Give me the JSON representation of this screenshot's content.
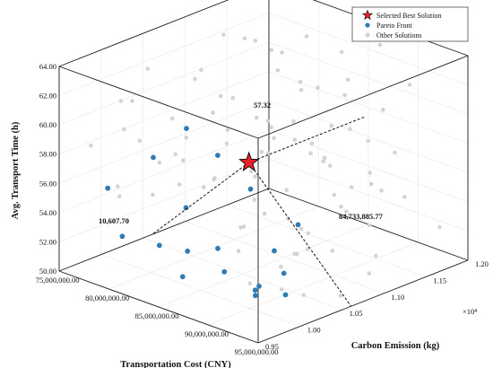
{
  "chart_data": {
    "type": "scatter3d",
    "axes": {
      "x": {
        "label": "Transportation Cost (CNY)",
        "ticks": [
          "75,000,000.00",
          "80,000,000.00",
          "85,000,000.00",
          "90,000,000.00",
          "95,000,000.00"
        ],
        "range": [
          75000000,
          95000000
        ]
      },
      "y": {
        "label": "Carbon Emission (kg)",
        "ticks": [
          "0.95",
          "1.00",
          "1.05",
          "1.10",
          "1.15",
          "1.20"
        ],
        "range": [
          0.95,
          1.2
        ],
        "multiplier": "×10⁴"
      },
      "z": {
        "label": "Avg. Transport Time (h)",
        "ticks": [
          "50.00",
          "52.00",
          "54.00",
          "56.00",
          "58.00",
          "60.00",
          "62.00",
          "64.00"
        ],
        "range": [
          50,
          64
        ]
      }
    },
    "legend": {
      "placement": "top-right",
      "entries": [
        "Selected Best Solution",
        "Pareto Front",
        "Other Solutions"
      ]
    },
    "colors": {
      "best": "#e8202a",
      "pareto": "#2f7bb5",
      "other": "#d3d3d3"
    },
    "annotations": {
      "cost": "84,733,885.77",
      "emission": "10,607.70",
      "time": "57.32"
    },
    "best": {
      "x": 84733885.77,
      "y": 1.06077,
      "z": 57.32
    },
    "pareto": [
      {
        "x": 80500000,
        "y": 0.96,
        "z": 53.5
      },
      {
        "x": 78200000,
        "y": 0.97,
        "z": 56.0
      },
      {
        "x": 81700000,
        "y": 0.99,
        "z": 52.5
      },
      {
        "x": 79400000,
        "y": 1.01,
        "z": 57.5
      },
      {
        "x": 81000000,
        "y": 1.03,
        "z": 54.0
      },
      {
        "x": 82000000,
        "y": 1.02,
        "z": 51.5
      },
      {
        "x": 83200000,
        "y": 1.0,
        "z": 50.5
      },
      {
        "x": 80200000,
        "y": 1.04,
        "z": 59.0
      },
      {
        "x": 82500000,
        "y": 1.05,
        "z": 57.5
      },
      {
        "x": 84200000,
        "y": 1.03,
        "z": 52.0
      },
      {
        "x": 85700000,
        "y": 1.02,
        "z": 51.0
      },
      {
        "x": 83000000,
        "y": 1.08,
        "z": 56.5
      },
      {
        "x": 85800000,
        "y": 1.05,
        "z": 56.0
      },
      {
        "x": 87500000,
        "y": 1.04,
        "z": 50.0
      },
      {
        "x": 86500000,
        "y": 1.07,
        "z": 51.5
      },
      {
        "x": 88800000,
        "y": 1.02,
        "z": 50.5
      },
      {
        "x": 87200000,
        "y": 1.09,
        "z": 53.0
      },
      {
        "x": 90500000,
        "y": 1.0,
        "z": 51.0
      },
      {
        "x": 90000000,
        "y": 1.04,
        "z": 51.5
      },
      {
        "x": 91000000,
        "y": 1.03,
        "z": 50.5
      }
    ],
    "others": [
      {
        "x": 76500000,
        "y": 0.97,
        "z": 58.5
      },
      {
        "x": 77000000,
        "y": 1.0,
        "z": 61.0
      },
      {
        "x": 78000000,
        "y": 1.02,
        "z": 63.0
      },
      {
        "x": 79000000,
        "y": 0.98,
        "z": 60.0
      },
      {
        "x": 80000000,
        "y": 1.06,
        "z": 62.5
      },
      {
        "x": 81000000,
        "y": 1.1,
        "z": 64.0
      },
      {
        "x": 82000000,
        "y": 1.12,
        "z": 63.0
      },
      {
        "x": 83000000,
        "y": 1.15,
        "z": 63.5
      },
      {
        "x": 84000000,
        "y": 1.18,
        "z": 62.0
      },
      {
        "x": 85000000,
        "y": 1.12,
        "z": 61.0
      },
      {
        "x": 86000000,
        "y": 1.16,
        "z": 60.0
      },
      {
        "x": 87000000,
        "y": 1.19,
        "z": 63.0
      },
      {
        "x": 88000000,
        "y": 1.14,
        "z": 62.0
      },
      {
        "x": 89000000,
        "y": 1.17,
        "z": 59.5
      },
      {
        "x": 90000000,
        "y": 1.19,
        "z": 61.0
      },
      {
        "x": 81500000,
        "y": 1.08,
        "z": 60.5
      },
      {
        "x": 82500000,
        "y": 1.11,
        "z": 58.5
      },
      {
        "x": 83500000,
        "y": 1.13,
        "z": 57.0
      },
      {
        "x": 84500000,
        "y": 1.09,
        "z": 59.0
      },
      {
        "x": 85500000,
        "y": 1.15,
        "z": 58.0
      },
      {
        "x": 86500000,
        "y": 1.13,
        "z": 56.5
      },
      {
        "x": 87500000,
        "y": 1.17,
        "z": 57.0
      },
      {
        "x": 88500000,
        "y": 1.19,
        "z": 56.0
      },
      {
        "x": 89500000,
        "y": 1.15,
        "z": 55.0
      },
      {
        "x": 80500000,
        "y": 1.12,
        "z": 58.0
      },
      {
        "x": 79500000,
        "y": 1.08,
        "z": 59.0
      },
      {
        "x": 78500000,
        "y": 1.06,
        "z": 57.5
      },
      {
        "x": 77500000,
        "y": 1.04,
        "z": 56.0
      },
      {
        "x": 76000000,
        "y": 1.1,
        "z": 60.0
      },
      {
        "x": 75500000,
        "y": 1.14,
        "z": 62.0
      },
      {
        "x": 77000000,
        "y": 1.16,
        "z": 61.5
      },
      {
        "x": 78000000,
        "y": 1.18,
        "z": 60.5
      },
      {
        "x": 79000000,
        "y": 1.19,
        "z": 58.5
      },
      {
        "x": 80000000,
        "y": 1.17,
        "z": 56.5
      },
      {
        "x": 81000000,
        "y": 1.18,
        "z": 55.0
      },
      {
        "x": 82000000,
        "y": 1.19,
        "z": 53.5
      },
      {
        "x": 83000000,
        "y": 1.17,
        "z": 54.5
      },
      {
        "x": 84000000,
        "y": 1.19,
        "z": 56.5
      },
      {
        "x": 85000000,
        "y": 1.18,
        "z": 53.0
      },
      {
        "x": 86000000,
        "y": 1.19,
        "z": 54.0
      },
      {
        "x": 87000000,
        "y": 1.15,
        "z": 52.5
      },
      {
        "x": 88000000,
        "y": 1.18,
        "z": 53.5
      },
      {
        "x": 89000000,
        "y": 1.12,
        "z": 54.0
      },
      {
        "x": 90000000,
        "y": 1.1,
        "z": 55.5
      },
      {
        "x": 91000000,
        "y": 1.13,
        "z": 53.0
      },
      {
        "x": 92000000,
        "y": 1.16,
        "z": 54.5
      },
      {
        "x": 93000000,
        "y": 1.19,
        "z": 52.0
      },
      {
        "x": 92500000,
        "y": 1.12,
        "z": 51.5
      },
      {
        "x": 91500000,
        "y": 1.08,
        "z": 52.5
      },
      {
        "x": 93500000,
        "y": 1.1,
        "z": 51.0
      },
      {
        "x": 94000000,
        "y": 1.06,
        "z": 50.5
      },
      {
        "x": 92000000,
        "y": 1.04,
        "z": 50.5
      },
      {
        "x": 89000000,
        "y": 1.08,
        "z": 52.0
      },
      {
        "x": 88000000,
        "y": 1.06,
        "z": 51.0
      },
      {
        "x": 86000000,
        "y": 1.1,
        "z": 50.5
      },
      {
        "x": 85000000,
        "y": 1.12,
        "z": 51.5
      },
      {
        "x": 84000000,
        "y": 1.14,
        "z": 50.5
      },
      {
        "x": 83000000,
        "y": 1.1,
        "z": 52.5
      },
      {
        "x": 82000000,
        "y": 1.14,
        "z": 51.0
      },
      {
        "x": 81000000,
        "y": 1.15,
        "z": 52.5
      },
      {
        "x": 79500000,
        "y": 1.13,
        "z": 53.5
      },
      {
        "x": 78500000,
        "y": 1.15,
        "z": 54.5
      },
      {
        "x": 77500000,
        "y": 1.12,
        "z": 55.5
      },
      {
        "x": 76500000,
        "y": 1.08,
        "z": 55.0
      },
      {
        "x": 75500000,
        "y": 1.04,
        "z": 57.0
      },
      {
        "x": 76000000,
        "y": 1.01,
        "z": 54.0
      },
      {
        "x": 77500000,
        "y": 0.99,
        "z": 55.5
      },
      {
        "x": 78500000,
        "y": 1.02,
        "z": 54.5
      },
      {
        "x": 79500000,
        "y": 1.04,
        "z": 55.0
      },
      {
        "x": 80500000,
        "y": 1.07,
        "z": 55.0
      },
      {
        "x": 82500000,
        "y": 1.09,
        "z": 55.5
      },
      {
        "x": 84500000,
        "y": 1.07,
        "z": 54.5
      },
      {
        "x": 86500000,
        "y": 1.03,
        "z": 54.0
      },
      {
        "x": 88500000,
        "y": 1.01,
        "z": 55.0
      },
      {
        "x": 90500000,
        "y": 0.98,
        "z": 54.5
      },
      {
        "x": 92500000,
        "y": 0.97,
        "z": 53.0
      },
      {
        "x": 94000000,
        "y": 0.99,
        "z": 52.5
      },
      {
        "x": 93000000,
        "y": 1.02,
        "z": 54.0
      },
      {
        "x": 87000000,
        "y": 0.98,
        "z": 58.0
      },
      {
        "x": 85000000,
        "y": 0.97,
        "z": 60.0
      },
      {
        "x": 83000000,
        "y": 0.99,
        "z": 61.5
      },
      {
        "x": 81500000,
        "y": 0.96,
        "z": 63.0
      },
      {
        "x": 89000000,
        "y": 1.04,
        "z": 60.5
      },
      {
        "x": 91000000,
        "y": 1.06,
        "z": 59.5
      },
      {
        "x": 87500000,
        "y": 1.11,
        "z": 62.0
      },
      {
        "x": 84500000,
        "y": 1.03,
        "z": 62.5
      },
      {
        "x": 86000000,
        "y": 1.08,
        "z": 63.5
      },
      {
        "x": 80000000,
        "y": 1.14,
        "z": 55.0
      },
      {
        "x": 83500000,
        "y": 1.05,
        "z": 59.5
      },
      {
        "x": 85500000,
        "y": 1.01,
        "z": 57.5
      }
    ]
  }
}
